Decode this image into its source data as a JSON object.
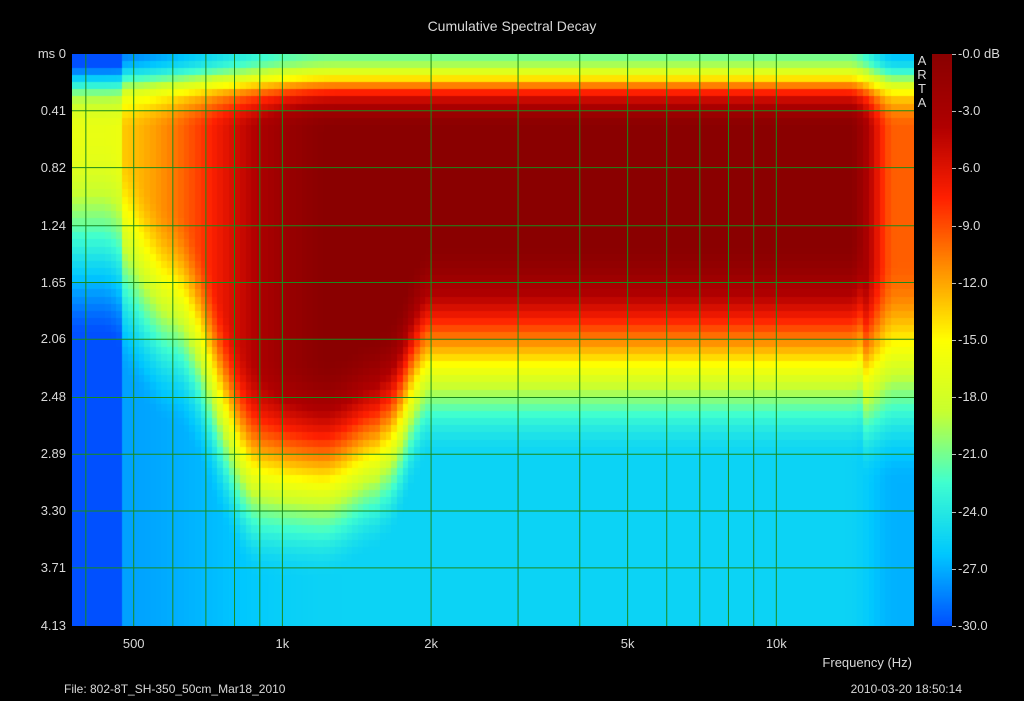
{
  "chart_data": {
    "type": "heatmap",
    "title": "Cumulative Spectral Decay",
    "xlabel": "Frequency (Hz)",
    "xscale": "log",
    "xlim": [
      375,
      19000
    ],
    "x_ticks": [
      "500",
      "1k",
      "2k",
      "5k",
      "10k"
    ],
    "x_tick_values": [
      500,
      1000,
      2000,
      5000,
      10000
    ],
    "ylabel": "ms",
    "ylim": [
      0,
      4.13
    ],
    "y_ticks": [
      "ms 0",
      "0.41",
      "0.82",
      "1.24",
      "1.65",
      "2.06",
      "2.48",
      "2.89",
      "3.30",
      "3.71",
      "4.13"
    ],
    "y_tick_values": [
      0,
      0.41,
      0.82,
      1.24,
      1.65,
      2.06,
      2.48,
      2.89,
      3.3,
      3.71,
      4.13
    ],
    "colorbar": {
      "ticks": [
        "-0.0 dB",
        "-3.0",
        "-6.0",
        "-9.0",
        "-12.0",
        "-15.0",
        "-18.0",
        "-21.0",
        "-24.0",
        "-27.0",
        "-30.0"
      ],
      "range_db": [
        -30,
        0
      ],
      "colors": [
        "#0050ff",
        "#00c8ff",
        "#40ffd0",
        "#c8ff30",
        "#ffff00",
        "#ff9000",
        "#ff2000",
        "#b00000",
        "#8a0000"
      ]
    },
    "grid": true,
    "grid_color": "#1a8a1a",
    "watermark": "ARTA",
    "decay_regions": [
      {
        "f_range": [
          400,
          600
        ],
        "t_end_ms": 1.9,
        "peak_db": -15
      },
      {
        "f_range": [
          700,
          1600
        ],
        "t_end_ms": 2.9,
        "peak_db": -5
      },
      {
        "f_range": [
          1600,
          2000
        ],
        "t_end_ms": 2.1,
        "peak_db": -4
      },
      {
        "f_range": [
          2000,
          15000
        ],
        "t_end_ms": 2.0,
        "peak_db": 0
      },
      {
        "f_range": [
          15000,
          19000
        ],
        "t_end_ms": 3.0,
        "peak_db": -20
      }
    ]
  },
  "footer": {
    "file": "File: 802-8T_SH-350_50cm_Mar18_2010",
    "timestamp": "2010-03-20  18:50:14"
  }
}
